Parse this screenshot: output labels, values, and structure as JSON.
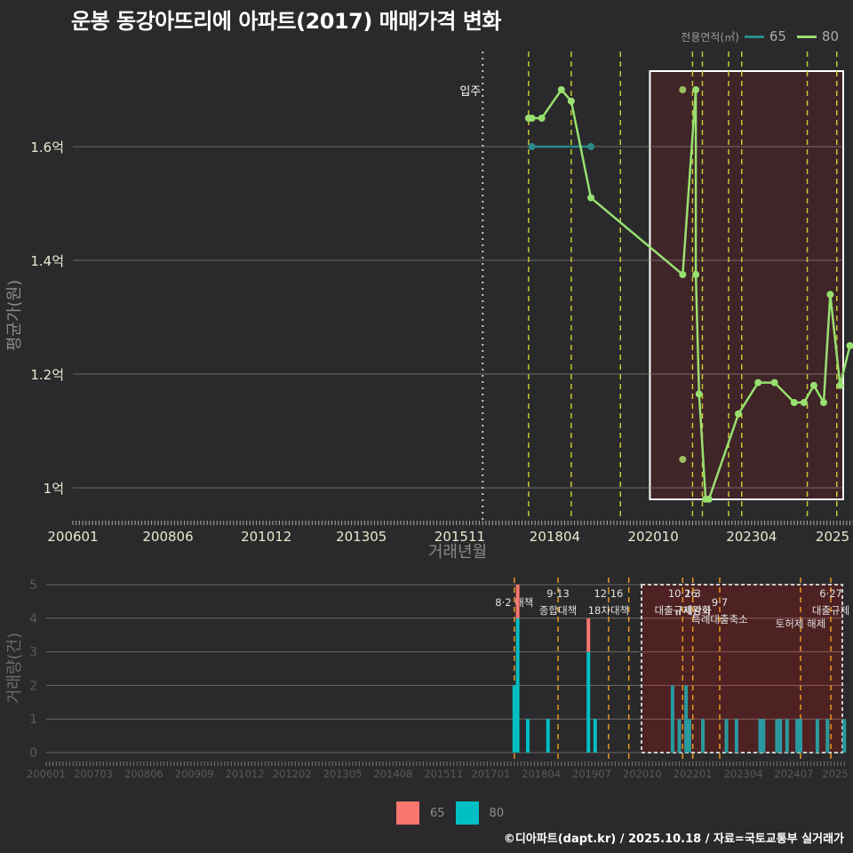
{
  "title": "운봉 동강아뜨리에 아파트(2017) 매매가격 변화",
  "legend_top": {
    "label": "전용면적(㎡)",
    "items": [
      {
        "name": "65",
        "color": "#2a8a8a"
      },
      {
        "name": "80",
        "color": "#98e070"
      }
    ]
  },
  "legend_bottom": {
    "items": [
      {
        "name": "65",
        "color": "#f8766d"
      },
      {
        "name": "80",
        "color": "#00bfc4"
      }
    ]
  },
  "footer": "©디아파트(dapt.kr) / 2025.10.18 / 자료=국토교통부 실거래가",
  "chart_data": [
    {
      "type": "line",
      "title": "운봉 동강아뜨리에 아파트(2017) 매매가격 변화",
      "xlabel": "거래년월",
      "ylabel": "평균가(원)",
      "x_ticks": [
        "200601",
        "200806",
        "201012",
        "201305",
        "201511",
        "201804",
        "202010",
        "202304",
        "2025"
      ],
      "y_ticks": [
        {
          "v": 1.0,
          "label": "1억"
        },
        {
          "v": 1.2,
          "label": "1.2억"
        },
        {
          "v": 1.4,
          "label": "1.4억"
        },
        {
          "v": 1.6,
          "label": "1.6억"
        }
      ],
      "ylim": [
        0.94,
        1.74
      ],
      "annotation": {
        "label": "입주",
        "month": "201606"
      },
      "policy_lines": [
        "201708",
        "201809",
        "201912",
        "202110",
        "202201",
        "202209",
        "202301",
        "202409",
        "202506"
      ],
      "highlight_box": {
        "from": "202009",
        "to": "202510"
      },
      "series": [
        {
          "name": "65",
          "color": "#2a8a8a",
          "points": [
            [
              "201709",
              1.6
            ],
            [
              "201903",
              1.6
            ]
          ]
        },
        {
          "name": "80",
          "color": "#98e070",
          "points": [
            [
              "201708",
              1.65
            ],
            [
              "201709",
              1.65
            ],
            [
              "201712",
              1.65
            ],
            [
              "201806",
              1.7
            ],
            [
              "201809",
              1.68
            ],
            [
              "201903",
              1.51
            ],
            [
              "202107",
              1.375
            ],
            [
              "202111",
              1.7
            ],
            [
              "202111",
              1.375
            ],
            [
              "202112",
              1.165
            ],
            [
              "202202",
              0.98
            ],
            [
              "202203",
              0.98
            ],
            [
              "202212",
              1.13
            ],
            [
              "202306",
              1.185
            ],
            [
              "202311",
              1.185
            ],
            [
              "202405",
              1.15
            ],
            [
              "202408",
              1.15
            ],
            [
              "202411",
              1.18
            ],
            [
              "202502",
              1.15
            ],
            [
              "202504",
              1.34
            ],
            [
              "202507",
              1.18
            ],
            [
              "202510",
              1.25
            ]
          ]
        },
        {
          "name": "80-scatter",
          "color": "#98c060",
          "points": [
            [
              "202107",
              1.7
            ],
            [
              "202107",
              1.05
            ]
          ]
        }
      ]
    },
    {
      "type": "bar",
      "xlabel": "",
      "ylabel": "거래량(건)",
      "ylim": [
        0,
        5
      ],
      "y_ticks": [
        0,
        1,
        2,
        3,
        4,
        5
      ],
      "x_ticks": [
        "200601",
        "200703",
        "200806",
        "200909",
        "201012",
        "201202",
        "201305",
        "201408",
        "201511",
        "201701",
        "201804",
        "201907",
        "202010",
        "202201",
        "202304",
        "202407",
        "2025"
      ],
      "policies": [
        {
          "month": "201708",
          "label": "8·2 대책",
          "row": 2
        },
        {
          "month": "201809",
          "label": "9·13\n종합대책",
          "row": 1
        },
        {
          "month": "201912",
          "label": "12·16\n18차대책",
          "row": 1
        },
        {
          "month": "202006",
          "label": "",
          "row": 0
        },
        {
          "month": "202110",
          "label": "10·26\n대출규제강화",
          "row": 1
        },
        {
          "month": "202201",
          "label": "1·3\n규제완화",
          "row": 1
        },
        {
          "month": "202209",
          "label": "9·7\n특례대출축소",
          "row": 2
        },
        {
          "month": "202409",
          "label": "토허제 해제",
          "row": 3
        },
        {
          "month": "202506",
          "label": "6·27\n대출규제",
          "row": 1
        }
      ],
      "highlight_box": {
        "from": "202008",
        "to": "202510"
      },
      "series": [
        {
          "name": "65",
          "color": "#f8766d",
          "values": [
            [
              "201708",
              0
            ],
            [
              "201709",
              1
            ],
            [
              "201906",
              1
            ]
          ]
        },
        {
          "name": "80",
          "color": "#00bfc4",
          "values": [
            [
              "201708",
              2
            ],
            [
              "201709",
              4
            ],
            [
              "201712",
              1
            ],
            [
              "201806",
              1
            ],
            [
              "201809",
              0
            ],
            [
              "201906",
              3
            ],
            [
              "201908",
              1
            ],
            [
              "202107",
              2
            ],
            [
              "202109",
              1
            ],
            [
              "202111",
              2
            ],
            [
              "202112",
              1
            ],
            [
              "202204",
              1
            ],
            [
              "202211",
              1
            ],
            [
              "202302",
              1
            ],
            [
              "202309",
              1
            ],
            [
              "202310",
              1
            ],
            [
              "202402",
              1
            ],
            [
              "202403",
              1
            ],
            [
              "202405",
              1
            ],
            [
              "202408",
              1
            ],
            [
              "202409",
              1
            ],
            [
              "202502",
              1
            ],
            [
              "202505",
              1
            ],
            [
              "202510",
              1
            ]
          ]
        }
      ]
    }
  ]
}
